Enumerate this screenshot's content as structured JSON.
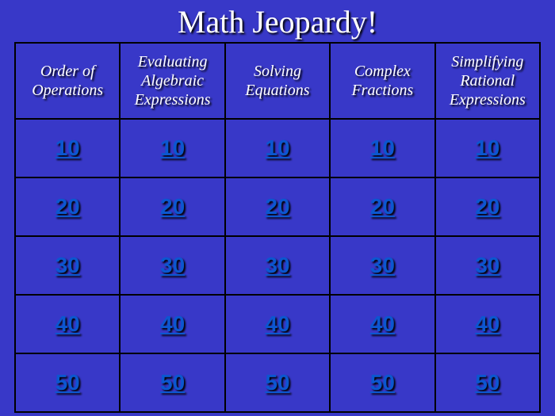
{
  "title": "Math Jeopardy!",
  "board": {
    "background_color": "#3838c8",
    "border_color": "#000000",
    "title_color": "#ffffff",
    "category_text_color": "#ffffff",
    "value_text_color": "#0b57d0",
    "text_shadow_color": "#000000",
    "categories": [
      "Order of Operations",
      "Evaluating Algebraic Expressions",
      "Solving Equations",
      "Complex Fractions",
      "Simplifying Rational Expressions"
    ],
    "values": [
      10,
      20,
      30,
      40,
      50
    ],
    "columns": 5,
    "rows": 5,
    "title_fontsize": 40,
    "category_fontsize": 20,
    "value_fontsize": 28,
    "category_font_style": "italic",
    "value_font_weight": "bold",
    "value_underline": true
  }
}
